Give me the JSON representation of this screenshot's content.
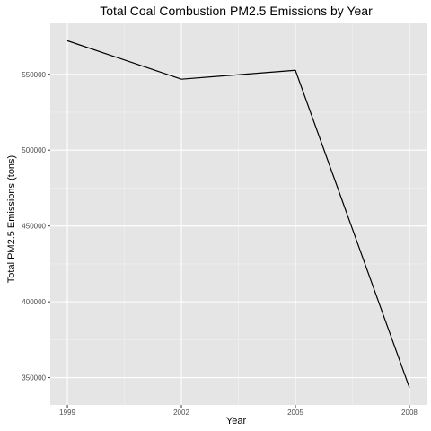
{
  "chart_data": {
    "type": "line",
    "title": "Total Coal Combustion PM2.5 Emissions by Year",
    "xlabel": "Year",
    "ylabel": "Total PM2.5 Emissions (tons)",
    "x": [
      1999,
      2002,
      2005,
      2008
    ],
    "x_tick_labels": [
      "1999",
      "2002",
      "2005",
      "2008"
    ],
    "series": [
      {
        "values": [
          572126,
          546789,
          552675,
          343432
        ]
      }
    ],
    "y_ticks": [
      350000,
      400000,
      450000,
      500000,
      550000
    ],
    "y_tick_labels": [
      "350000",
      "400000",
      "450000",
      "500000",
      "550000"
    ],
    "xlim": [
      1998.55,
      2008.45
    ],
    "ylim": [
      332000,
      583600
    ],
    "grid": true,
    "legend": "none",
    "colors": {
      "panel_background": "#e5e5e5",
      "grid_major": "#ffffff",
      "grid_minor": "#f2f2f2",
      "line": "#000000",
      "tick_label": "#4d4d4d",
      "tick_mark": "#333333"
    }
  }
}
